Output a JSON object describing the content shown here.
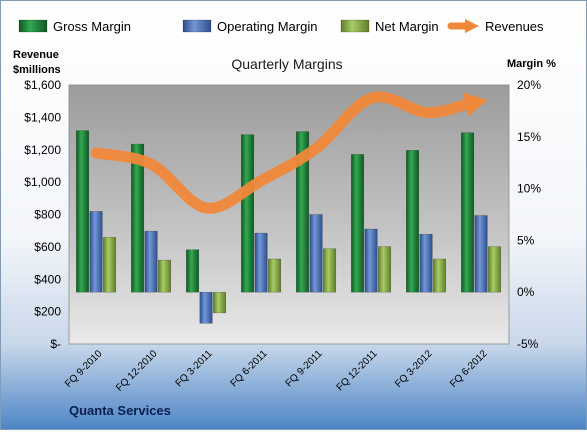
{
  "chart_data": {
    "type": "bar",
    "title": "Quarterly Margins",
    "company": "Quanta Services",
    "left_axis_title": "Revenue $millions",
    "left_axis_title_lines": [
      "Revenue",
      "$millions"
    ],
    "right_axis_title": "Margin %",
    "categories": [
      "FQ 9-2010",
      "FQ 12-2010",
      "FQ 3-2011",
      "FQ 6-2011",
      "FQ 9-2011",
      "FQ 12-2011",
      "FQ 3-2012",
      "FQ 6-2012"
    ],
    "left_ticks": [
      "$1,600",
      "$1,400",
      "$1,200",
      "$1,000",
      "$800",
      "$600",
      "$400",
      "$200",
      "$-"
    ],
    "right_ticks": [
      "20%",
      "15%",
      "10%",
      "5%",
      "0%",
      "-5%"
    ],
    "left_ylim": [
      0,
      1600
    ],
    "right_ylim": [
      -5,
      20
    ],
    "legend_position": "top",
    "series": [
      {
        "name": "Gross Margin",
        "axis": "right",
        "color": "#1f8a3c",
        "values": [
          15.6,
          14.3,
          4.1,
          15.2,
          15.5,
          13.3,
          13.7,
          15.4
        ]
      },
      {
        "name": "Operating Margin",
        "axis": "right",
        "color": "#4a78c0",
        "values": [
          7.8,
          5.9,
          -3.0,
          5.7,
          7.5,
          6.1,
          5.6,
          7.4
        ]
      },
      {
        "name": "Net Margin",
        "axis": "right",
        "color": "#8db64a",
        "values": [
          5.3,
          3.1,
          -2.0,
          3.2,
          4.2,
          4.4,
          3.2,
          4.4
        ]
      },
      {
        "name": "Revenues",
        "axis": "left",
        "type": "line",
        "color": "#f0883a",
        "values": [
          1180,
          1110,
          840,
          1010,
          1210,
          1520,
          1430,
          1500
        ]
      }
    ]
  }
}
